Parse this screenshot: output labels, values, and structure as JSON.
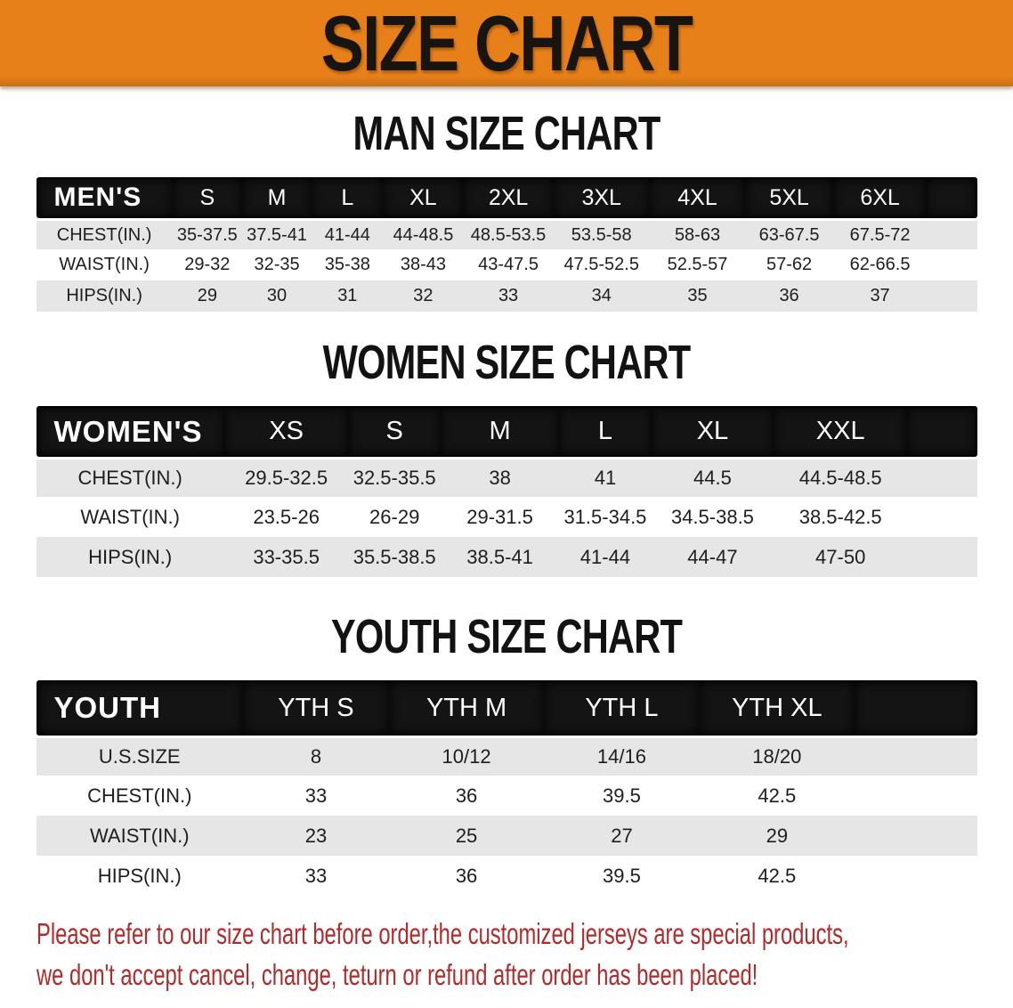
{
  "banner": {
    "title": "SIZE CHART"
  },
  "sections": [
    {
      "title": "MAN SIZE CHART",
      "table": {
        "header_label": "MEN'S",
        "columns": [
          "S",
          "M",
          "L",
          "XL",
          "2XL",
          "3XL",
          "4XL",
          "5XL",
          "6XL"
        ],
        "rows": [
          {
            "label": "CHEST(IN.)",
            "values": [
              "35-37.5",
              "37.5-41",
              "41-44",
              "44-48.5",
              "48.5-53.5",
              "53.5-58",
              "58-63",
              "63-67.5",
              "67.5-72"
            ]
          },
          {
            "label": "WAIST(IN.)",
            "values": [
              "29-32",
              "32-35",
              "35-38",
              "38-43",
              "43-47.5",
              "47.5-52.5",
              "52.5-57",
              "57-62",
              "62-66.5"
            ]
          },
          {
            "label": "HIPS(IN.)",
            "values": [
              "29",
              "30",
              "31",
              "32",
              "33",
              "34",
              "35",
              "36",
              "37"
            ]
          }
        ]
      }
    },
    {
      "title": "WOMEN SIZE CHART",
      "table": {
        "header_label": "WOMEN'S",
        "columns": [
          "XS",
          "S",
          "M",
          "L",
          "XL",
          "XXL"
        ],
        "rows": [
          {
            "label": "CHEST(IN.)",
            "values": [
              "29.5-32.5",
              "32.5-35.5",
              "38",
              "41",
              "44.5",
              "44.5-48.5"
            ]
          },
          {
            "label": "WAIST(IN.)",
            "values": [
              "23.5-26",
              "26-29",
              "29-31.5",
              "31.5-34.5",
              "34.5-38.5",
              "38.5-42.5"
            ]
          },
          {
            "label": "HIPS(IN.)",
            "values": [
              "33-35.5",
              "35.5-38.5",
              "38.5-41",
              "41-44",
              "44-47",
              "47-50"
            ]
          }
        ]
      }
    },
    {
      "title": "YOUTH SIZE CHART",
      "table": {
        "header_label": "YOUTH",
        "columns": [
          "YTH S",
          "YTH M",
          "YTH L",
          "YTH XL"
        ],
        "rows": [
          {
            "label": "U.S.SIZE",
            "values": [
              "8",
              "10/12",
              "14/16",
              "18/20"
            ]
          },
          {
            "label": "CHEST(IN.)",
            "values": [
              "33",
              "36",
              "39.5",
              "42.5"
            ]
          },
          {
            "label": "WAIST(IN.)",
            "values": [
              "23",
              "25",
              "27",
              "29"
            ]
          },
          {
            "label": "HIPS(IN.)",
            "values": [
              "33",
              "36",
              "39.5",
              "42.5"
            ]
          }
        ]
      }
    }
  ],
  "disclaimer": {
    "line1": "Please refer to our size chart before order,the customized jerseys are special products,",
    "line2": "we don't accept cancel, change, teturn or refund after order has been placed!",
    "color": "#b22a2a"
  },
  "colors": {
    "banner_orange": "#e8801a",
    "header_black": "#141414",
    "row_shade": "#e6e6e6",
    "row_plain": "#ffffff",
    "banner_text": "#181410"
  }
}
